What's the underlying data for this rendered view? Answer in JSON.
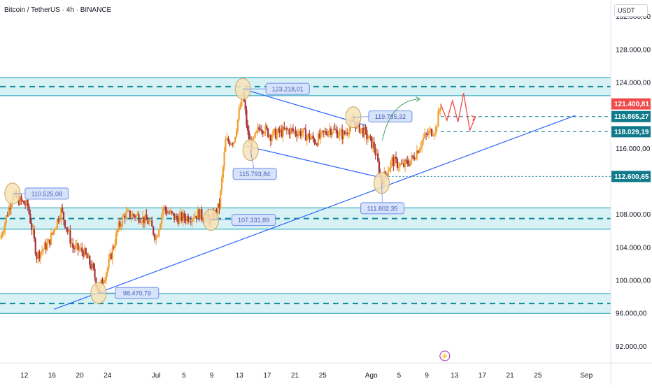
{
  "header": {
    "title": "Bitcoin / TetherUS · 4h · BINANCE"
  },
  "currency": "USDT",
  "colors": {
    "up": "#f0a030",
    "down": "#a8323a",
    "zone": "#c9ecf2",
    "zone_line": "#1aa0b5",
    "trend": "#2962ff",
    "price_red": "#ef4b4b",
    "price_teal": "#0f7a8a",
    "label_fill": "#d7e3fb",
    "label_border": "#6d8ee8",
    "label_text": "#4a63b8",
    "marker_fill": "#f6e3b8"
  },
  "chart_data": {
    "type": "candlestick",
    "y_axis": {
      "ticks": [
        "132.000,00",
        "128.000,00",
        "124.000,00",
        "116.000,00",
        "108.000,00",
        "104.000,00",
        "100.000,00",
        "96.000,00",
        "92.000,00"
      ],
      "tick_values": [
        132000,
        128000,
        124000,
        116000,
        108000,
        104000,
        100000,
        96000,
        92000
      ],
      "range": [
        90000,
        134000
      ]
    },
    "x_axis": {
      "ticks": [
        "12",
        "16",
        "20",
        "24",
        "Jul",
        "5",
        "9",
        "13",
        "17",
        "21",
        "25",
        "Ago",
        "5",
        "9",
        "13",
        "17",
        "21",
        "25",
        "Sep"
      ],
      "tick_days": [
        12,
        16,
        20,
        24,
        31,
        35,
        39,
        43,
        47,
        51,
        55,
        62,
        66,
        70,
        74,
        78,
        82,
        86,
        93
      ],
      "range": [
        8.5,
        96.5
      ]
    },
    "zones": [
      {
        "low": 122400,
        "high": 124600
      },
      {
        "low": 106200,
        "high": 108800
      },
      {
        "low": 96000,
        "high": 98400
      }
    ],
    "price_tags": [
      {
        "text": "121.400,81",
        "value": 121400,
        "style": "red"
      },
      {
        "text": "119.865,27",
        "value": 119865,
        "style": "teal"
      },
      {
        "text": "118.029,19",
        "value": 118029,
        "style": "teal"
      },
      {
        "text": "112.600,65",
        "value": 112600,
        "style": "teal"
      }
    ],
    "annotations": [
      {
        "text": "110.525,08",
        "day": 10.3,
        "value": 110525
      },
      {
        "text": "98.470,79",
        "day": 22.7,
        "value": 98470
      },
      {
        "text": "107.331,89",
        "day": 38.9,
        "value": 107331
      },
      {
        "text": "123.218,01",
        "day": 43.5,
        "value": 123218
      },
      {
        "text": "115.793,84",
        "day": 44.6,
        "value": 115794
      },
      {
        "text": "119.785,32",
        "day": 59.4,
        "value": 119785
      },
      {
        "text": "111.802,35",
        "day": 63.5,
        "value": 111802
      }
    ],
    "trendlines": [
      {
        "from": [
          16.3,
          96500
        ],
        "to": [
          91.4,
          120000
        ]
      },
      {
        "from": [
          43.5,
          123200
        ],
        "to": [
          61.2,
          118800
        ]
      },
      {
        "from": [
          43.9,
          116300
        ],
        "to": [
          63.7,
          112400
        ]
      }
    ],
    "candles_segments": [
      [
        8.5,
        105000
      ],
      [
        10.3,
        110300
      ],
      [
        12.5,
        109000
      ],
      [
        13.8,
        103000
      ],
      [
        15.5,
        104500
      ],
      [
        17.3,
        108500
      ],
      [
        19.0,
        104000
      ],
      [
        20.5,
        103500
      ],
      [
        21.8,
        101500
      ],
      [
        22.7,
        98800
      ],
      [
        24.0,
        101500
      ],
      [
        25.6,
        106500
      ],
      [
        26.5,
        108000
      ],
      [
        28.5,
        107800
      ],
      [
        30.0,
        107000
      ],
      [
        31.0,
        105200
      ],
      [
        32.0,
        108800
      ],
      [
        33.8,
        107500
      ],
      [
        35.8,
        107700
      ],
      [
        37.0,
        108100
      ],
      [
        38.9,
        107300
      ],
      [
        40.1,
        109000
      ],
      [
        41.0,
        116800
      ],
      [
        42.2,
        117000
      ],
      [
        43.5,
        122800
      ],
      [
        44.2,
        117800
      ],
      [
        44.7,
        116200
      ],
      [
        46.0,
        118800
      ],
      [
        47.5,
        117600
      ],
      [
        50.0,
        118200
      ],
      [
        52.0,
        117900
      ],
      [
        54.0,
        116900
      ],
      [
        56.0,
        118400
      ],
      [
        58.0,
        117600
      ],
      [
        59.4,
        119300
      ],
      [
        61.0,
        117900
      ],
      [
        62.4,
        116200
      ],
      [
        63.5,
        112000
      ],
      [
        65.0,
        114500
      ],
      [
        66.5,
        113800
      ],
      [
        68.0,
        114800
      ],
      [
        69.5,
        117200
      ],
      [
        70.5,
        118000
      ],
      [
        71.3,
        118400
      ],
      [
        72.0,
        121400
      ]
    ]
  }
}
